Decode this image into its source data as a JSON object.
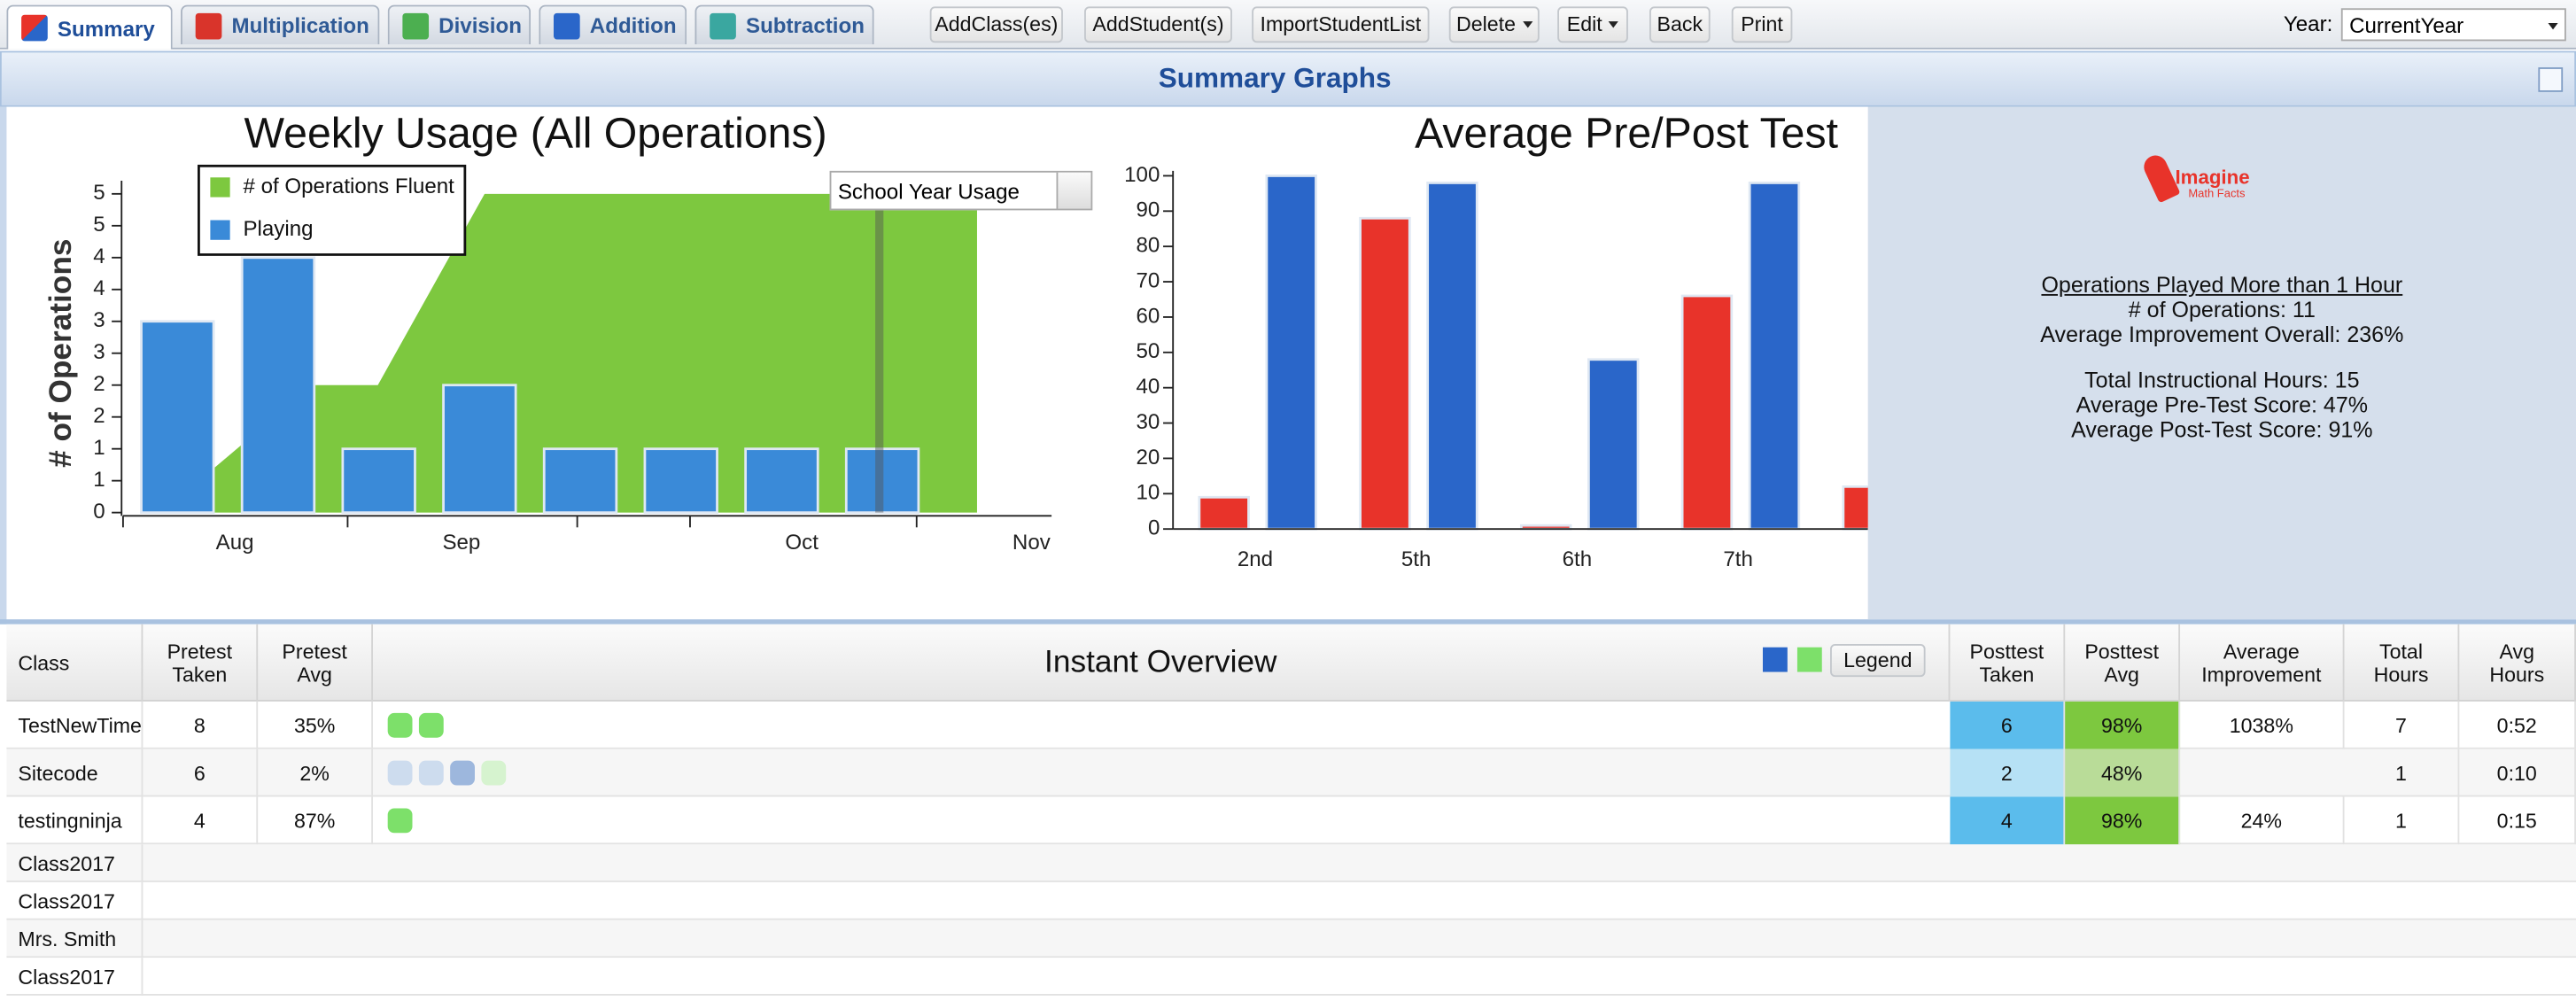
{
  "tabs": [
    "Summary",
    "Multiplication",
    "Division",
    "Addition",
    "Subtraction"
  ],
  "toolbar": {
    "buttons": [
      "AddClass(es)",
      "AddStudent(s)",
      "ImportStudentList",
      "Delete",
      "Edit",
      "Back",
      "Print"
    ],
    "year_label": "Year:",
    "year_value": "CurrentYear"
  },
  "panel_title": "Summary Graphs",
  "usage_select": "School Year Usage",
  "chart_data": [
    {
      "type": "combo",
      "title": "Weekly Usage (All Operations)",
      "y_label": "# of Operations",
      "series": [
        {
          "name": "# of Operations Fluent",
          "kind": "area",
          "color": "#7dc83f",
          "x": [
            -0.16,
            1.34,
            1.99,
            3.05,
            7.94,
            7.94
          ],
          "values": [
            0,
            2,
            2,
            5,
            5,
            0
          ]
        },
        {
          "name": "Playing",
          "kind": "bar",
          "color": "#3a8ad8",
          "x": [
            0,
            1,
            2,
            3,
            4,
            5,
            6,
            7
          ],
          "values": [
            3,
            4,
            1,
            2,
            1,
            1,
            1,
            1
          ]
        }
      ],
      "xlim": [
        -0.54,
        8.68
      ],
      "xticks": [
        {
          "value": 0.57,
          "label": "Aug"
        },
        {
          "value": 2.82,
          "label": "Sep"
        },
        {
          "value": 6.2,
          "label": "Oct"
        },
        {
          "value": 8.48,
          "label": "Nov"
        }
      ],
      "minor_xticks": [
        -0.54,
        1.69,
        3.97,
        5.09,
        7.34
      ],
      "ylim": [
        0,
        5
      ],
      "yticks": [
        0,
        {
          "value": 0.5,
          "label": "1"
        },
        1,
        {
          "value": 1.5,
          "label": "2"
        },
        2,
        {
          "value": 2.5,
          "label": "3"
        },
        3,
        {
          "value": 3.5,
          "label": "4"
        },
        4,
        {
          "value": 4.5,
          "label": "5"
        },
        5
      ],
      "marker_x": 6.97,
      "legend": "top-left"
    },
    {
      "type": "bar",
      "title": "Average Pre/Post Test",
      "categories": [
        "2nd",
        "5th",
        "6th",
        "7th",
        null
      ],
      "series": [
        {
          "color": "#e8332a",
          "values": [
            9,
            88,
            1,
            66,
            12
          ]
        },
        {
          "color": "#2a66c9",
          "values": [
            100,
            98,
            48,
            98,
            null
          ]
        }
      ],
      "ylim": [
        0,
        100
      ],
      "yticks": [
        0,
        10,
        20,
        30,
        40,
        50,
        60,
        70,
        80,
        90,
        100
      ]
    }
  ],
  "stats": {
    "logo": "Imagine",
    "logo_sub": "Math Facts",
    "heading": "Operations Played More than 1 Hour",
    "groups": [
      [
        "# of Operations: 11",
        "Average Improvement Overall: 236%"
      ],
      [
        "Total Instructional Hours: 15",
        "Average Pre-Test Score: 47%",
        "Average Post-Test Score: 91%"
      ]
    ]
  },
  "table": {
    "columns": [
      "Class",
      "Pretest Taken",
      "Pretest Avg",
      "Instant Overview",
      "Posttest Taken",
      "Posttest Avg",
      "Average Improvement",
      "Total Hours",
      "Avg Hours"
    ],
    "legend_button": "Legend",
    "legend_colors": [
      "#2a66c9",
      "#7de06a"
    ],
    "rows": [
      {
        "cells": [
          "TestNewTime",
          8,
          "35%",
          6,
          "98%",
          "1038%",
          7,
          "0:52"
        ],
        "overview": [
          "#7de06a",
          "#7de06a"
        ],
        "highlight": [
          "#5bbcec",
          "#7dc83f"
        ]
      },
      {
        "cells": [
          "Sitecode",
          6,
          "2%",
          2,
          "48%",
          null,
          1,
          "0:10"
        ],
        "overview": [
          "#cddcee",
          "#cddcee",
          "#9db7dd",
          "#d6f3cf"
        ],
        "highlight": [
          "#b6e1f5",
          "#b9dc98"
        ]
      },
      {
        "cells": [
          "testingninja",
          4,
          "87%",
          4,
          "98%",
          "24%",
          1,
          "0:15"
        ],
        "overview": [
          "#7de06a"
        ],
        "highlight": [
          "#5bbcec",
          "#7dc83f"
        ]
      },
      {
        "cells": [
          "Class2017"
        ]
      },
      {
        "cells": [
          "Class2017"
        ]
      },
      {
        "cells": [
          "Mrs. Smith"
        ]
      },
      {
        "cells": [
          "Class2017"
        ]
      }
    ]
  }
}
